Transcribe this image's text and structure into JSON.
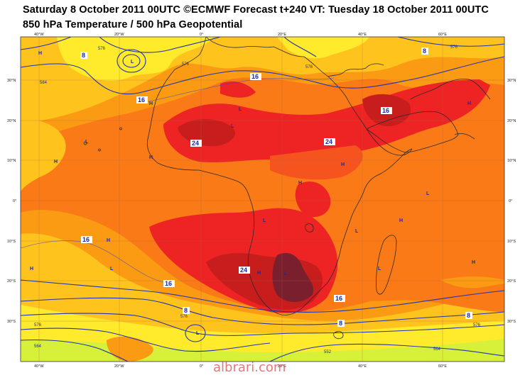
{
  "header": {
    "line1": "Saturday 8 October 2011 00UTC ©ECMWF Forecast t+240 VT: Tuesday 18 October 2011 00UTC",
    "line2": "850 hPa Temperature / 500 hPa Geopotential"
  },
  "axes": {
    "lon_top": [
      "40°W",
      "20°W",
      "0°",
      "20°E",
      "40°E",
      "60°E"
    ],
    "lon_bottom": [
      "40°W",
      "20°W",
      "0°",
      "20°E",
      "40°E",
      "60°E"
    ],
    "lat_left": [
      "30°N",
      "20°N",
      "10°N",
      "0°",
      "10°S",
      "20°S",
      "30°S"
    ],
    "lat_right": [
      "30°N",
      "20°N",
      "10°N",
      "0°",
      "10°S",
      "20°S",
      "30°S"
    ]
  },
  "temperature_labels": [
    "8",
    "16",
    "16",
    "24",
    "24",
    "8",
    "16",
    "24",
    "16",
    "8",
    "16",
    "8",
    "8",
    "16"
  ],
  "geopotential_labels": [
    "576",
    "584",
    "576",
    "576",
    "576",
    "576",
    "576",
    "564",
    "552",
    "564",
    "576"
  ],
  "pressure_centers": [
    "H",
    "L",
    "H",
    "L",
    "H",
    "L",
    "L",
    "H",
    "H",
    "L",
    "H",
    "L",
    "H",
    "L",
    "H",
    "L",
    "L",
    "H",
    "H",
    "L",
    "L",
    "H",
    "H"
  ],
  "colors": {
    "very_hot": "#7a1f2e",
    "hot_dark": "#c81d1d",
    "hot": "#ee2424",
    "warm_red": "#f6541f",
    "warm": "#f97a16",
    "orange_light": "#fb9b14",
    "yellow_orange": "#ffc31e",
    "yellow": "#ffea2c",
    "lime": "#d7f13a",
    "isohypse": "#2233aa",
    "coast": "#2a2a2a"
  },
  "watermark": "albrari.com"
}
